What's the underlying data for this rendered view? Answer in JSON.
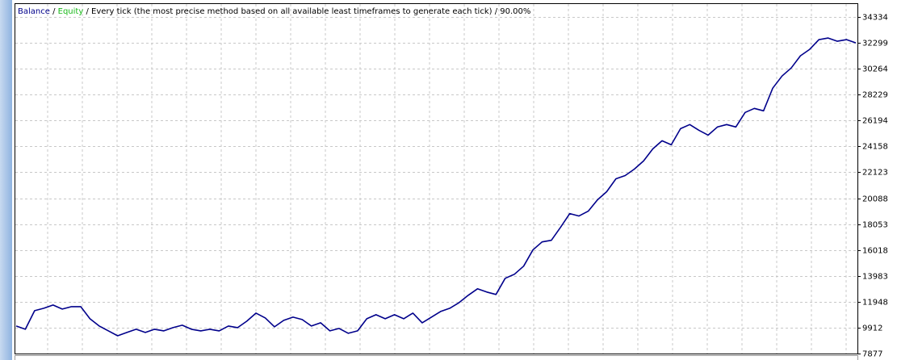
{
  "chart_data": {
    "type": "line",
    "legend_separator": "/",
    "model": "Every tick (the most precise method based on all available least timeframes to generate each tick)",
    "quality": "90.00%",
    "equity": {
      "name": "Equity",
      "color": "#18b818"
    },
    "series": [
      {
        "name": "Balance",
        "color": "#00008b",
        "values": [
          10039,
          9785,
          11248,
          11439,
          11693,
          11375,
          11566,
          11566,
          10612,
          10039,
          9658,
          9276,
          9531,
          9785,
          9531,
          9785,
          9658,
          9912,
          10103,
          9785,
          9658,
          9785,
          9658,
          10039,
          9912,
          10421,
          11057,
          10675,
          9976,
          10485,
          10739,
          10548,
          10039,
          10294,
          9658,
          9849,
          9467,
          9658,
          10612,
          10930,
          10612,
          10930,
          10612,
          11057,
          10294,
          10739,
          11184,
          11439,
          11884,
          12456,
          12965,
          12711,
          12520,
          13792,
          14110,
          14746,
          16018,
          16654,
          16781,
          17799,
          18880,
          18689,
          19071,
          19961,
          20597,
          21615,
          21869,
          22378,
          23014,
          23968,
          24604,
          24286,
          25558,
          25876,
          25431,
          25049,
          25685,
          25876,
          25685,
          26830,
          27148,
          26957,
          28738,
          29692,
          30328,
          31282,
          31791,
          32554,
          32681,
          32427,
          32554,
          32299
        ]
      }
    ],
    "ylim": [
      7877,
      35352
    ],
    "yticks": [
      7877,
      9912,
      11948,
      13983,
      16018,
      18053,
      20088,
      22123,
      24158,
      26194,
      28229,
      30264,
      32299,
      34334
    ],
    "grid": true
  }
}
